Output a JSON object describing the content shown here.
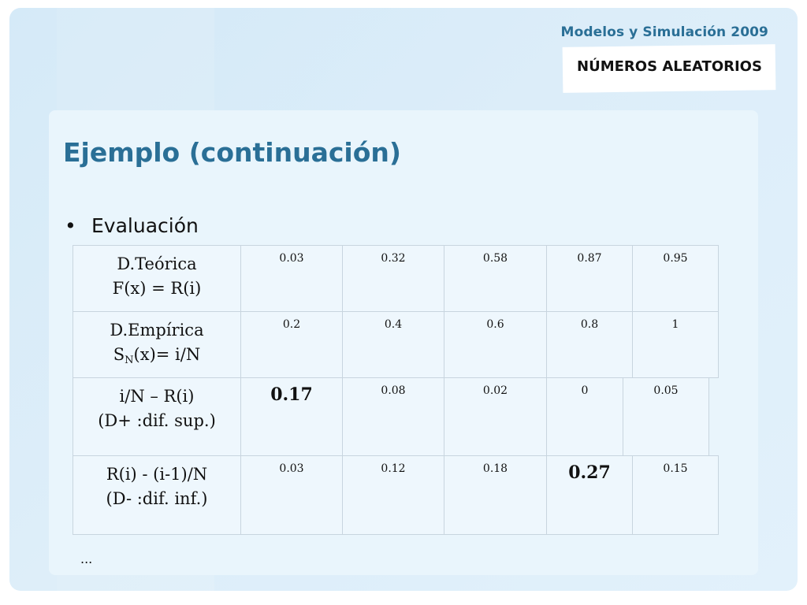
{
  "header": {
    "course": "Modelos y Simulación 2009",
    "topic": "NÚMEROS ALEATORIOS"
  },
  "slide": {
    "title": "Ejemplo (continuación)",
    "bullet_symbol": "•",
    "bullet": "Evaluación",
    "footer_ellipsis": "..."
  },
  "table": {
    "rows": [
      {
        "label_line1": "D.Teórica",
        "label_line2": "F(x) = R(i)",
        "values": [
          "0.03",
          "0.32",
          "0.58",
          "0.87",
          "0.95"
        ]
      },
      {
        "label_line1": "D.Empírica",
        "label_line2_pre": "S",
        "label_line2_sub": "N",
        "label_line2_post": "(x)= i/N",
        "values": [
          "0.2",
          "0.4",
          "0.6",
          "0.8",
          "1"
        ]
      },
      {
        "label_line1": "i/N – R(i)",
        "label_line2": "(D+ :dif. sup.)",
        "values": [
          "0.17",
          "0.08",
          "0.02",
          "0",
          "0.05"
        ]
      },
      {
        "label_line1": "R(i) - (i-1)/N",
        "label_line2": "(D- :dif. inf.)",
        "values": [
          "0.03",
          "0.12",
          "0.18",
          "0.27",
          "0.15"
        ]
      }
    ]
  }
}
